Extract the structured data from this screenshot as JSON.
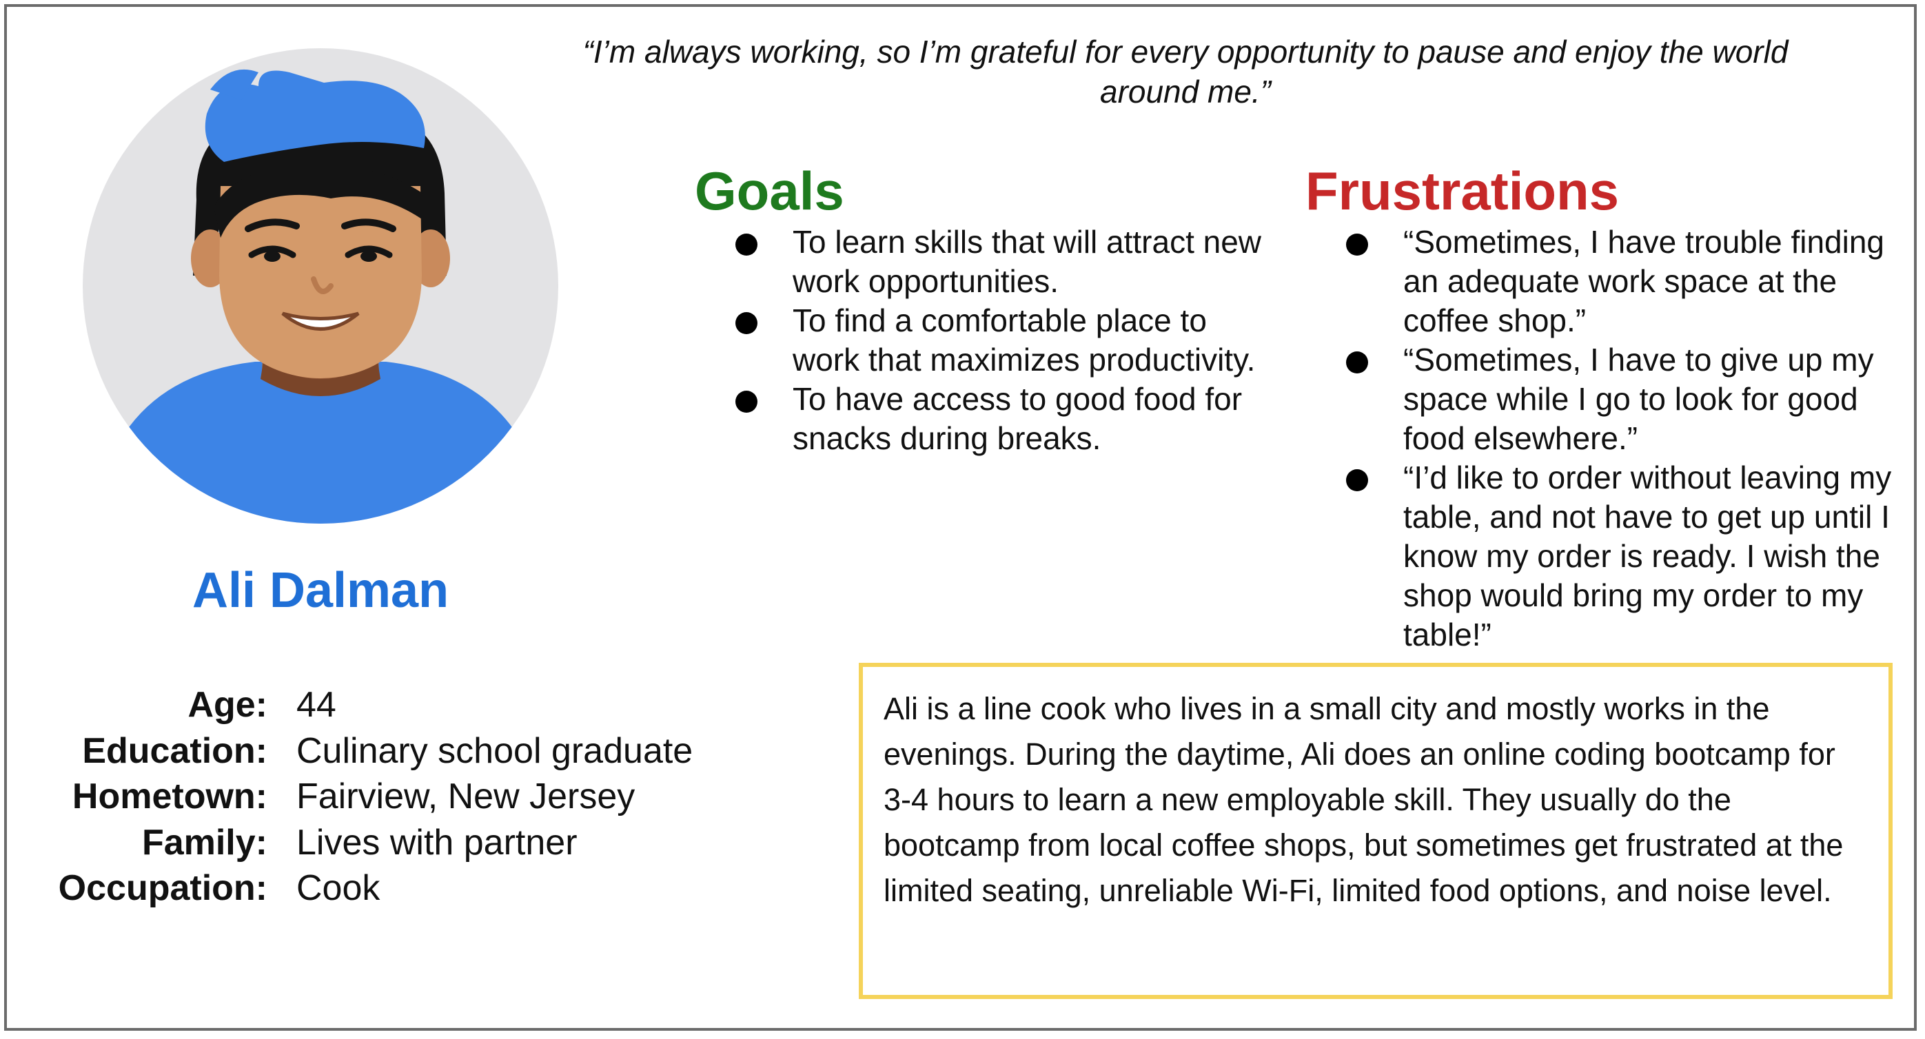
{
  "persona": {
    "name": "Ali Dalman",
    "quote": "“I’m always working, so I’m grateful for every opportunity to pause and enjoy the world around me.”"
  },
  "goals": {
    "title": "Goals",
    "items": [
      "To learn skills that will attract new work opportunities.",
      "To find a comfortable place to work that maximizes productivity.",
      "To have access to good food for snacks during breaks."
    ]
  },
  "frustrations": {
    "title": "Frustrations",
    "items": [
      "“Sometimes, I have trouble finding an adequate work space at the coffee shop.”",
      "“Sometimes, I have to give up my space while I go to look for good food elsewhere.”",
      "“I’d like to order without leaving my table, and not have to get up until I know my order is ready. I wish the shop would bring my order to my table!”"
    ]
  },
  "details": [
    {
      "label": "Age:",
      "value": "44"
    },
    {
      "label": "Education:",
      "value": "Culinary school graduate"
    },
    {
      "label": "Hometown:",
      "value": "Fairview, New Jersey"
    },
    {
      "label": "Family:",
      "value": "Lives with partner"
    },
    {
      "label": "Occupation:",
      "value": "Cook"
    }
  ],
  "bio": "Ali is a line cook who lives in a small city and mostly works in the evenings. During the daytime, Ali does an online coding bootcamp for 3-4 hours to learn a new employable skill. They usually do the bootcamp from local coffee shops, but sometimes get frustrated at the limited seating, unreliable Wi-Fi, limited food options, and noise level.",
  "colors": {
    "goals_title": "#1e7a1e",
    "frustrations_title": "#c62828",
    "name": "#1f6fd6",
    "bio_border": "#f5d35a",
    "card_border": "#6b6b6b",
    "avatar_background": "#e3e3e5",
    "hair": "#3d84e6",
    "shirt": "#3d84e6",
    "skin": "#d49a6a"
  },
  "icons": {
    "avatar": "person-avatar-illustration"
  }
}
